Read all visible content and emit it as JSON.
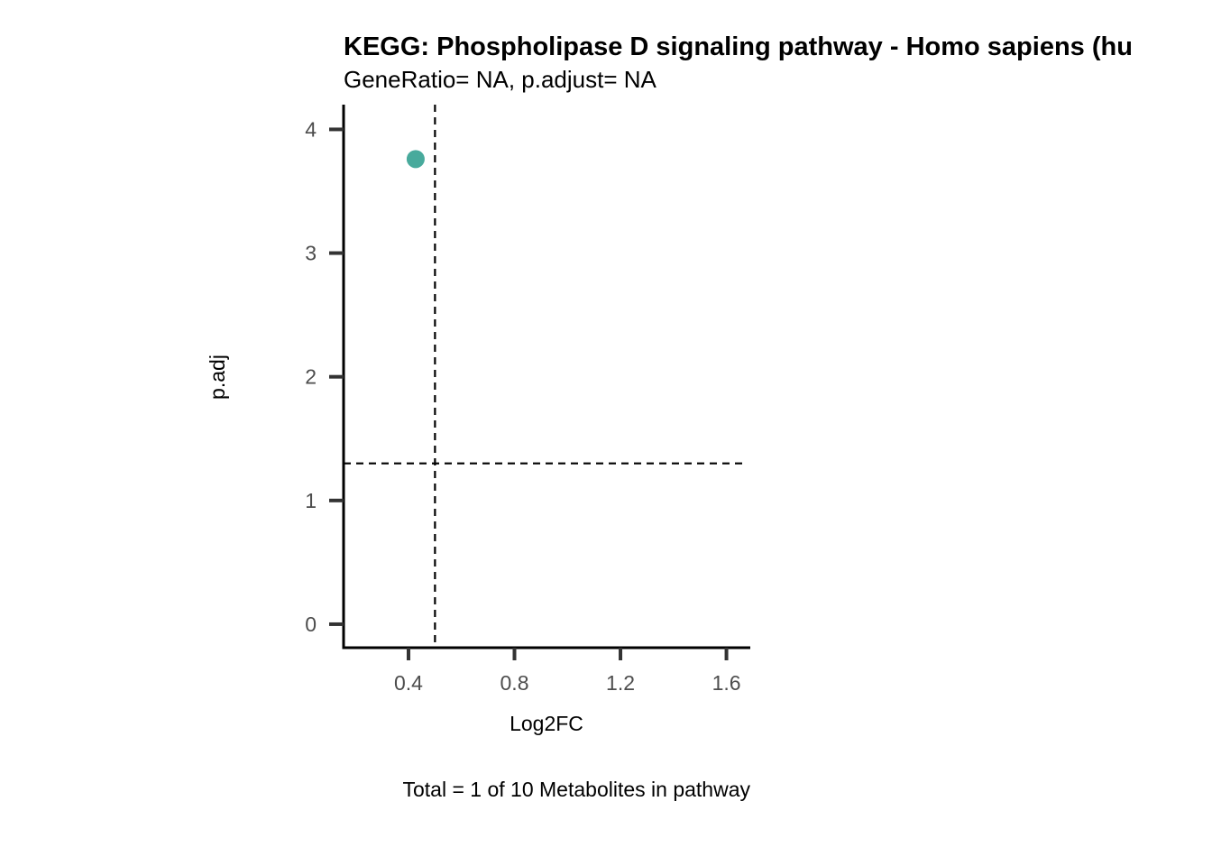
{
  "chart_data": {
    "type": "scatter",
    "title": "KEGG: Phospholipase D signaling pathway - Homo sapiens (hu",
    "subtitle": "GeneRatio= NA, p.adjust= NA",
    "xlabel": "Log2FC",
    "ylabel": "p.adj",
    "caption": "Total = 1 of 10 Metabolites in pathway",
    "xlim": [
      0.155,
      1.69
    ],
    "ylim": [
      -0.19,
      4.2
    ],
    "x_ticks": [
      0.4,
      0.8,
      1.2,
      1.6
    ],
    "x_tick_labels": [
      "0.4",
      "0.8",
      "1.2",
      "1.6"
    ],
    "y_ticks": [
      0,
      1,
      2,
      3,
      4
    ],
    "y_tick_labels": [
      "0",
      "1",
      "2",
      "3",
      "4"
    ],
    "points": [
      {
        "x": 0.427,
        "y": 3.76
      }
    ],
    "point_color": "#48aa9c",
    "reference_lines": {
      "vertical_x": 0.5,
      "horizontal_y": 1.3,
      "style": "dashed",
      "color": "#000000"
    },
    "grid": false,
    "legend": "none"
  }
}
